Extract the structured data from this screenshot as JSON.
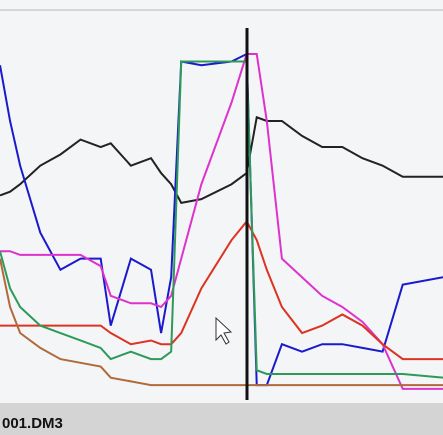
{
  "chart_data": {
    "type": "line",
    "footer": "001.DM3",
    "x": [
      0,
      10,
      20,
      40,
      60,
      80,
      100,
      110,
      130,
      150,
      160,
      170,
      180,
      200,
      230,
      245,
      255,
      265,
      280,
      300,
      320,
      340,
      360,
      380,
      400,
      440
    ],
    "xlim": [
      0,
      440
    ],
    "ylim": [
      0,
      100
    ],
    "series": [
      {
        "color": "#222222",
        "values": [
          55,
          56,
          58,
          63,
          66,
          70,
          68,
          69,
          63,
          65,
          61,
          58,
          53,
          54,
          58,
          61,
          76,
          75,
          75,
          71,
          68,
          68,
          65,
          63,
          60,
          60
        ]
      },
      {
        "color": "#1a1acc",
        "values": [
          90,
          75,
          63,
          45,
          35,
          38,
          38,
          20,
          38,
          35,
          18,
          33,
          91,
          90,
          91,
          93,
          4,
          4,
          15,
          13,
          15,
          15,
          14,
          13,
          31,
          33
        ]
      },
      {
        "color": "#dd33cc",
        "values": [
          40,
          40,
          39,
          39,
          39,
          39,
          36,
          28,
          26,
          26,
          25,
          28,
          38,
          58,
          80,
          93,
          93,
          75,
          38,
          33,
          28,
          25,
          21,
          15,
          3,
          3
        ]
      },
      {
        "color": "#dd3322",
        "values": [
          20,
          20,
          20,
          20,
          20,
          20,
          20,
          18,
          15,
          16,
          15,
          15,
          18,
          30,
          43,
          48,
          43,
          35,
          25,
          18,
          20,
          23,
          20,
          15,
          11,
          11
        ]
      },
      {
        "color": "#2e9a5a",
        "values": [
          40,
          30,
          25,
          20,
          18,
          16,
          14,
          11,
          13,
          11,
          11,
          13,
          91,
          91,
          91,
          91,
          8,
          7,
          7,
          7,
          7,
          7,
          7,
          7,
          7,
          6
        ]
      },
      {
        "color": "#b06a3a",
        "values": [
          38,
          25,
          18,
          14,
          11,
          10,
          9,
          6,
          5,
          4,
          4,
          4,
          4,
          4,
          4,
          4,
          4,
          4,
          4,
          4,
          4,
          4,
          4,
          4,
          4,
          4
        ]
      }
    ]
  }
}
